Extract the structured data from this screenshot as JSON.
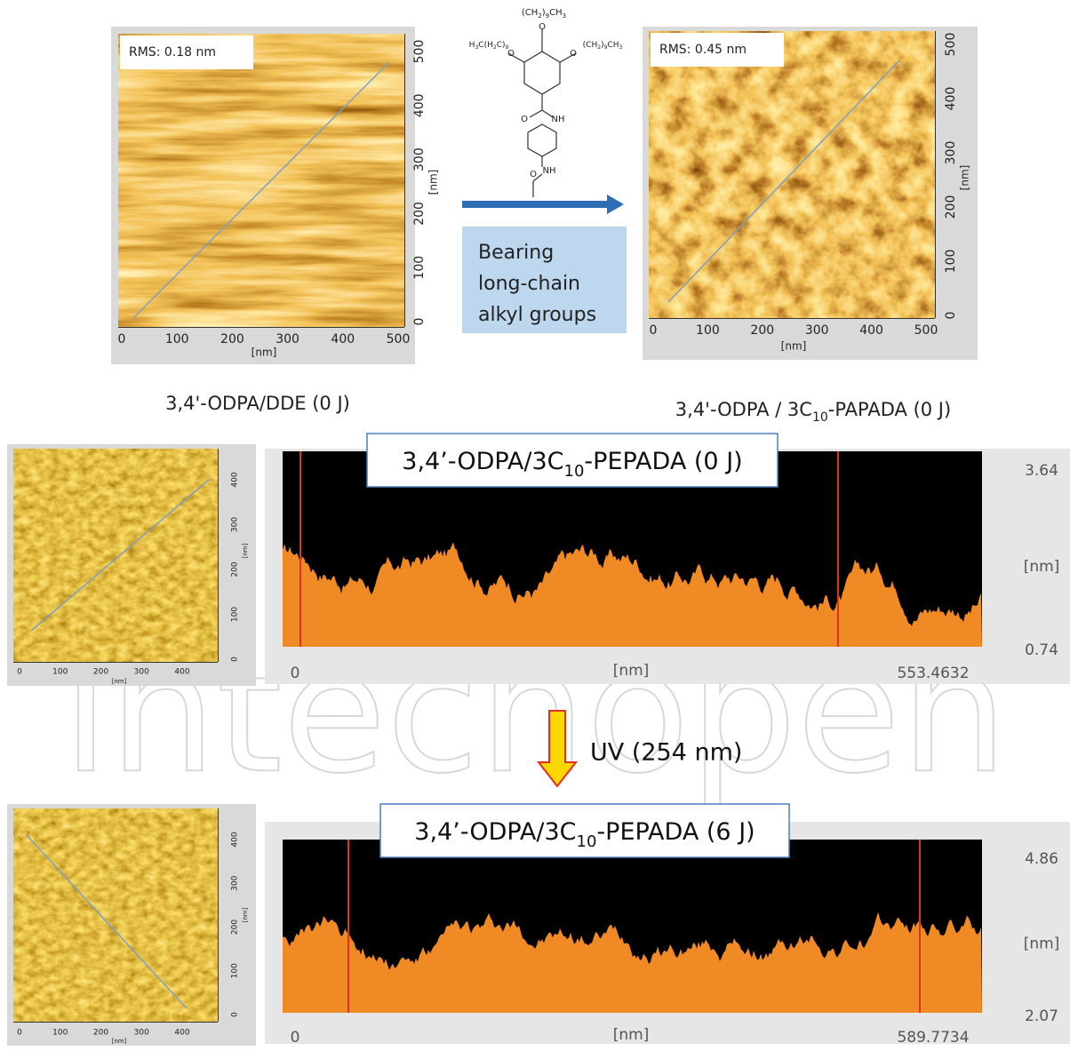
{
  "watermark": "intechopen",
  "top_left_afm": {
    "rms": "RMS: 0.18 nm",
    "xticks": [
      "0",
      "100",
      "200",
      "300",
      "400",
      "500"
    ],
    "yticks": [
      "0",
      "100",
      "200",
      "300",
      "400",
      "500"
    ],
    "x_unit": "[nm]",
    "y_unit": "[nm]",
    "caption": [
      "3,4'-ODPA/DDE (0 J)"
    ]
  },
  "structure": {
    "top_chain": [
      "(CH",
      "2",
      ")",
      "9",
      "CH",
      "3"
    ],
    "left_chain": [
      "H",
      "3",
      "C(H",
      "2",
      "C)",
      "9"
    ],
    "right_chain": [
      "(CH",
      "2",
      ")",
      "9",
      "CH",
      "3"
    ],
    "atoms": [
      "O",
      "O",
      "O",
      "O",
      "NH",
      "O",
      "NH"
    ]
  },
  "arrow_box": {
    "lines": [
      "Bearing",
      "long-chain",
      "alkyl groups"
    ]
  },
  "top_right_afm": {
    "rms": "RMS: 0.45 nm",
    "xticks": [
      "0",
      "100",
      "200",
      "300",
      "400",
      "500"
    ],
    "yticks": [
      "0",
      "100",
      "200",
      "300",
      "400",
      "500"
    ],
    "x_unit": "[nm]",
    "y_unit": "[nm]",
    "caption": [
      "3,4'-ODPA / 3C",
      "10",
      "-PAPADA (0 J)"
    ]
  },
  "middle_afm": {
    "xticks": [
      "0",
      "100",
      "200",
      "300",
      "400"
    ],
    "yticks": [
      "0",
      "100",
      "200",
      "300",
      "400"
    ],
    "x_unit": "[nm]",
    "y_unit": "[nm]"
  },
  "middle_profile": {
    "label": [
      "3,4’-ODPA/3C",
      "10",
      "-PEPADA (0 J)"
    ],
    "y_max": "3.64",
    "y_unit": "[nm]",
    "y_min": "0.74",
    "x_min": "0",
    "x_unit": "[nm]",
    "x_max": "553.4632"
  },
  "uv_label": "UV (254 nm)",
  "bottom_afm": {
    "xticks": [
      "0",
      "100",
      "200",
      "300",
      "400"
    ],
    "yticks": [
      "0",
      "100",
      "200",
      "300",
      "400"
    ],
    "x_unit": "[nm]",
    "y_unit": "[nm]"
  },
  "bottom_profile": {
    "label": [
      "3,4’-ODPA/3C",
      "10",
      "-PEPADA (6 J)"
    ],
    "y_max": "4.86",
    "y_unit": "[nm]",
    "y_min": "2.07",
    "x_min": "0",
    "x_unit": "[nm]",
    "x_max": "589.7734"
  }
}
